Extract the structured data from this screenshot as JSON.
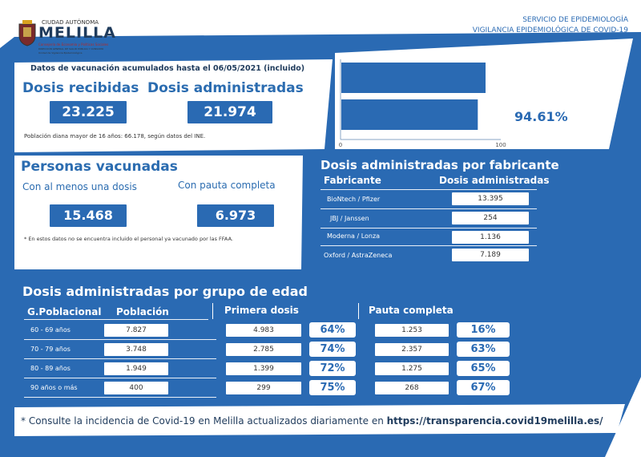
{
  "logo": {
    "line1": "CIUDAD AUTÓNOMA",
    "line2": "MELILLA",
    "line3": "Consejería de Economía y Políticas Sociales",
    "line4": "DIRECCIÓN GENERAL DE SALUD PÚBLICA Y CONSUMO",
    "line5": "Unidad de Vigilancia Epidemiológica"
  },
  "header": {
    "service": "SERVICIO DE EPIDEMIOLOGÍA",
    "vigilance": "VIGILANCIA EPIDEMIOLÓGICA DE COVID-19"
  },
  "summary": {
    "date_text": "Datos de vacunación acumulados hasta el 06/05/2021 (incluido)",
    "received_label": "Dosis recibidas",
    "received_value": "23.225",
    "administered_label": "Dosis administradas",
    "administered_value": "21.974",
    "population_note": "Población diana mayor de 16 años: 66.178, según datos del INE."
  },
  "colors": {
    "brand_blue": "#2a6ab3",
    "dark_blue": "#1f3b5c",
    "accent_bar": "#2a6ab3"
  },
  "chart_data": {
    "type": "bar",
    "orientation": "horizontal",
    "categories": [
      "Dosis recibidas",
      "Dosis administradas"
    ],
    "values": [
      100,
      94.61
    ],
    "xlim": [
      0,
      100
    ],
    "xticks": [
      "0",
      "100"
    ],
    "annotation": "94.61%"
  },
  "vaccinated": {
    "title": "Personas vacunadas",
    "one_dose_label": "Con al menos una dosis",
    "one_dose_value": "15.468",
    "full_label": "Con pauta completa",
    "full_value": "6.973",
    "note": "* En estos datos no se encuentra incluido el personal ya vacunado por las FFAA."
  },
  "manufacturer": {
    "title": "Dosis administradas por fabricante",
    "col_maker": "Fabricante",
    "col_doses": "Dosis administradas",
    "rows": [
      {
        "name": "BioNtech / Pfizer",
        "value": "13.395"
      },
      {
        "name": "JBJ / Janssen",
        "value": "254"
      },
      {
        "name": "Moderna / Lonza",
        "value": "1.136"
      },
      {
        "name": "Oxford / AstraZeneca",
        "value": "7.189"
      }
    ]
  },
  "age": {
    "title": "Dosis administradas por grupo de edad",
    "col_group": "G.Poblacional",
    "col_pop": "Población",
    "col_first": "Primera dosis",
    "col_full": "Pauta completa",
    "rows": [
      {
        "group": "60 - 69 años",
        "pop": "7.827",
        "first": "4.983",
        "first_pct": "64%",
        "full": "1.253",
        "full_pct": "16%"
      },
      {
        "group": "70 - 79 años",
        "pop": "3.748",
        "first": "2.785",
        "first_pct": "74%",
        "full": "2.357",
        "full_pct": "63%"
      },
      {
        "group": "80 - 89 años",
        "pop": "1.949",
        "first": "1.399",
        "first_pct": "72%",
        "full": "1.275",
        "full_pct": "65%"
      },
      {
        "group": "90 años o más",
        "pop": "400",
        "first": "299",
        "first_pct": "75%",
        "full": "268",
        "full_pct": "67%"
      }
    ]
  },
  "footer": {
    "text": "* Consulte la incidencia de Covid-19 en Melilla actualizados diariamente en ",
    "link": "https://transparencia.covid19melilla.es/"
  }
}
